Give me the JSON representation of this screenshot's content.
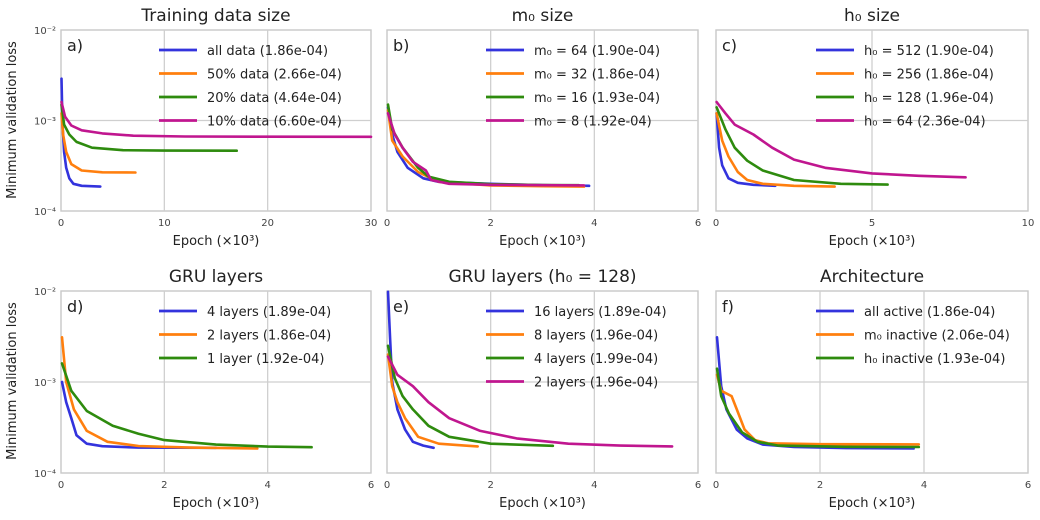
{
  "chart_data": [
    {
      "type": "line",
      "panel_label": "a)",
      "title": "Training data size",
      "xlabel": "Epoch (×10³)",
      "ylabel": "Minimum validation loss",
      "xlim": [
        0,
        30
      ],
      "xticks": [
        "0",
        "10",
        "20",
        "30"
      ],
      "ylim": [
        0.0001,
        0.01
      ],
      "yscale": "log",
      "yticks": [
        "10⁻⁴",
        "10⁻³",
        "10⁻²"
      ],
      "legend_position": "top-right",
      "series": [
        {
          "name": "all data (1.86e-04)",
          "color": "#3333dd",
          "points": [
            [
              0.05,
              0.0029
            ],
            [
              0.15,
              0.0009
            ],
            [
              0.3,
              0.00045
            ],
            [
              0.5,
              0.0003
            ],
            [
              0.8,
              0.00023
            ],
            [
              1.2,
              0.0002
            ],
            [
              2,
              0.00019
            ],
            [
              3.8,
              0.000186
            ]
          ]
        },
        {
          "name": "50% data (2.66e-04)",
          "color": "#ff7f0e",
          "points": [
            [
              0.05,
              0.0012
            ],
            [
              0.2,
              0.0007
            ],
            [
              0.5,
              0.00045
            ],
            [
              1,
              0.00033
            ],
            [
              2,
              0.00028
            ],
            [
              4,
              0.000268
            ],
            [
              7.2,
              0.000266
            ]
          ]
        },
        {
          "name": "20% data (4.64e-04)",
          "color": "#2e8b0e",
          "points": [
            [
              0.05,
              0.0015
            ],
            [
              0.3,
              0.0009
            ],
            [
              0.8,
              0.0007
            ],
            [
              1.5,
              0.00058
            ],
            [
              3,
              0.0005
            ],
            [
              6,
              0.00047
            ],
            [
              10,
              0.000465
            ],
            [
              17,
              0.000464
            ]
          ]
        },
        {
          "name": "10% data (6.60e-04)",
          "color": "#c0168f",
          "points": [
            [
              0.05,
              0.0016
            ],
            [
              0.4,
              0.0011
            ],
            [
              1,
              0.00088
            ],
            [
              2,
              0.00078
            ],
            [
              4,
              0.00072
            ],
            [
              7,
              0.00068
            ],
            [
              12,
              0.000665
            ],
            [
              20,
              0.000662
            ],
            [
              30,
              0.00066
            ]
          ]
        }
      ]
    },
    {
      "type": "line",
      "panel_label": "b)",
      "title": "m₀ size",
      "xlabel": "Epoch (×10³)",
      "xlim": [
        0,
        6
      ],
      "xticks": [
        "0",
        "2",
        "4",
        "6"
      ],
      "ylim": [
        0.0001,
        0.01
      ],
      "yscale": "log",
      "legend_position": "top-right",
      "series": [
        {
          "name": "m₀ = 64 (1.90e-04)",
          "color": "#3333dd",
          "points": [
            [
              0.02,
              0.0014
            ],
            [
              0.1,
              0.0007
            ],
            [
              0.2,
              0.00045
            ],
            [
              0.4,
              0.0003
            ],
            [
              0.7,
              0.00023
            ],
            [
              1,
              0.00021
            ],
            [
              2,
              0.0002
            ],
            [
              3,
              0.000193
            ],
            [
              3.9,
              0.00019
            ]
          ]
        },
        {
          "name": "m₀ = 32 (1.86e-04)",
          "color": "#ff7f0e",
          "points": [
            [
              0.02,
              0.0013
            ],
            [
              0.1,
              0.0006
            ],
            [
              0.3,
              0.0004
            ],
            [
              0.6,
              0.00027
            ],
            [
              1,
              0.00021
            ],
            [
              2,
              0.000192
            ],
            [
              3,
              0.000188
            ],
            [
              3.8,
              0.000186
            ]
          ]
        },
        {
          "name": "m₀ = 16 (1.93e-04)",
          "color": "#2e8b0e",
          "points": [
            [
              0.02,
              0.0015
            ],
            [
              0.1,
              0.0008
            ],
            [
              0.3,
              0.0005
            ],
            [
              0.6,
              0.0003
            ],
            [
              0.8,
              0.00024
            ],
            [
              1.2,
              0.00021
            ],
            [
              2,
              0.000198
            ],
            [
              3,
              0.000194
            ],
            [
              3.7,
              0.000193
            ]
          ]
        },
        {
          "name": "m₀ = 8 (1.92e-04)",
          "color": "#c0168f",
          "points": [
            [
              0.02,
              0.0012
            ],
            [
              0.15,
              0.0007
            ],
            [
              0.3,
              0.0005
            ],
            [
              0.5,
              0.00035
            ],
            [
              0.75,
              0.00028
            ],
            [
              0.85,
              0.00022
            ],
            [
              1.2,
              0.0002
            ],
            [
              2,
              0.000195
            ],
            [
              3,
              0.000193
            ],
            [
              3.8,
              0.000192
            ]
          ]
        }
      ]
    },
    {
      "type": "line",
      "panel_label": "c)",
      "title": "h₀ size",
      "xlabel": "Epoch (×10³)",
      "xlim": [
        0,
        10
      ],
      "xticks": [
        "0",
        "5",
        "10"
      ],
      "ylim": [
        0.0001,
        0.01
      ],
      "yscale": "log",
      "legend_position": "top-right",
      "series": [
        {
          "name": "h₀ = 512 (1.90e-04)",
          "color": "#3333dd",
          "points": [
            [
              0.02,
              0.0012
            ],
            [
              0.1,
              0.0005
            ],
            [
              0.2,
              0.00032
            ],
            [
              0.4,
              0.00023
            ],
            [
              0.7,
              0.000205
            ],
            [
              1.2,
              0.000195
            ],
            [
              1.9,
              0.00019
            ]
          ]
        },
        {
          "name": "h₀ = 256 (1.86e-04)",
          "color": "#ff7f0e",
          "points": [
            [
              0.02,
              0.0012
            ],
            [
              0.2,
              0.0006
            ],
            [
              0.4,
              0.0004
            ],
            [
              0.7,
              0.00027
            ],
            [
              1,
              0.00022
            ],
            [
              1.5,
              0.0002
            ],
            [
              2.5,
              0.00019
            ],
            [
              3.8,
              0.000186
            ]
          ]
        },
        {
          "name": "h₀ = 128 (1.96e-04)",
          "color": "#2e8b0e",
          "points": [
            [
              0.02,
              0.0014
            ],
            [
              0.3,
              0.0008
            ],
            [
              0.6,
              0.0005
            ],
            [
              1,
              0.00036
            ],
            [
              1.5,
              0.00028
            ],
            [
              2.5,
              0.00022
            ],
            [
              4,
              0.0002
            ],
            [
              5.5,
              0.000196
            ]
          ]
        },
        {
          "name": "h₀ = 64 (2.36e-04)",
          "color": "#c0168f",
          "points": [
            [
              0.02,
              0.0016
            ],
            [
              0.3,
              0.0012
            ],
            [
              0.6,
              0.0009
            ],
            [
              1.2,
              0.0007
            ],
            [
              1.8,
              0.0005
            ],
            [
              2.5,
              0.00037
            ],
            [
              3.5,
              0.0003
            ],
            [
              5,
              0.00026
            ],
            [
              6.5,
              0.000245
            ],
            [
              8,
              0.000236
            ]
          ]
        }
      ]
    },
    {
      "type": "line",
      "panel_label": "d)",
      "title": "GRU layers",
      "xlabel": "Epoch (×10³)",
      "ylabel": "Minimum validation loss",
      "xlim": [
        0,
        6
      ],
      "xticks": [
        "0",
        "2",
        "4",
        "6"
      ],
      "ylim": [
        0.0001,
        0.01
      ],
      "yscale": "log",
      "yticks": [
        "10⁻⁴",
        "10⁻³",
        "10⁻²"
      ],
      "legend_position": "top-right",
      "series": [
        {
          "name": "4 layers (1.89e-04)",
          "color": "#3333dd",
          "points": [
            [
              0.02,
              0.001
            ],
            [
              0.1,
              0.0006
            ],
            [
              0.2,
              0.0004
            ],
            [
              0.3,
              0.00026
            ],
            [
              0.5,
              0.00021
            ],
            [
              0.8,
              0.000197
            ],
            [
              1.5,
              0.00019
            ],
            [
              3,
              0.000189
            ]
          ]
        },
        {
          "name": "2 layers (1.86e-04)",
          "color": "#ff7f0e",
          "points": [
            [
              0.02,
              0.0031
            ],
            [
              0.1,
              0.001
            ],
            [
              0.25,
              0.0005
            ],
            [
              0.5,
              0.00029
            ],
            [
              0.9,
              0.00022
            ],
            [
              1.5,
              0.000198
            ],
            [
              2.5,
              0.00019
            ],
            [
              3.8,
              0.000186
            ]
          ]
        },
        {
          "name": "1 layer (1.92e-04)",
          "color": "#2e8b0e",
          "points": [
            [
              0.02,
              0.0016
            ],
            [
              0.2,
              0.0008
            ],
            [
              0.5,
              0.00048
            ],
            [
              1,
              0.00033
            ],
            [
              1.5,
              0.00027
            ],
            [
              2,
              0.00023
            ],
            [
              3,
              0.000205
            ],
            [
              4,
              0.000195
            ],
            [
              4.85,
              0.000192
            ]
          ]
        }
      ]
    },
    {
      "type": "line",
      "panel_label": "e)",
      "title": "GRU layers (h₀ = 128)",
      "xlabel": "Epoch (×10³)",
      "xlim": [
        0,
        6
      ],
      "xticks": [
        "0",
        "2",
        "4",
        "6"
      ],
      "ylim": [
        0.0001,
        0.01
      ],
      "yscale": "log",
      "legend_position": "top-right",
      "series": [
        {
          "name": "16 layers (1.89e-04)",
          "color": "#3333dd",
          "points": [
            [
              0.02,
              0.0098
            ],
            [
              0.06,
              0.003
            ],
            [
              0.1,
              0.001
            ],
            [
              0.2,
              0.0005
            ],
            [
              0.35,
              0.0003
            ],
            [
              0.5,
              0.00022
            ],
            [
              0.7,
              0.0002
            ],
            [
              0.9,
              0.000189
            ]
          ]
        },
        {
          "name": "8 layers (1.96e-04)",
          "color": "#ff7f0e",
          "points": [
            [
              0.02,
              0.002
            ],
            [
              0.1,
              0.0009
            ],
            [
              0.2,
              0.0006
            ],
            [
              0.35,
              0.0004
            ],
            [
              0.6,
              0.00025
            ],
            [
              1,
              0.00021
            ],
            [
              1.5,
              0.0002
            ],
            [
              1.75,
              0.000196
            ]
          ]
        },
        {
          "name": "4 layers (1.99e-04)",
          "color": "#2e8b0e",
          "points": [
            [
              0.02,
              0.0025
            ],
            [
              0.15,
              0.0011
            ],
            [
              0.3,
              0.0007
            ],
            [
              0.5,
              0.0005
            ],
            [
              0.8,
              0.00033
            ],
            [
              1.2,
              0.00025
            ],
            [
              2,
              0.00021
            ],
            [
              3.2,
              0.000199
            ]
          ]
        },
        {
          "name": "2 layers (1.96e-04)",
          "color": "#c0168f",
          "points": [
            [
              0.02,
              0.0019
            ],
            [
              0.2,
              0.0012
            ],
            [
              0.5,
              0.0009
            ],
            [
              0.8,
              0.0006
            ],
            [
              1.2,
              0.0004
            ],
            [
              1.8,
              0.00029
            ],
            [
              2.5,
              0.00024
            ],
            [
              3.5,
              0.00021
            ],
            [
              4.5,
              0.0002
            ],
            [
              5.5,
              0.000196
            ]
          ]
        }
      ]
    },
    {
      "type": "line",
      "panel_label": "f)",
      "title": "Architecture",
      "xlabel": "Epoch (×10³)",
      "xlim": [
        0,
        6
      ],
      "xticks": [
        "0",
        "2",
        "4",
        "6"
      ],
      "ylim": [
        0.0001,
        0.01
      ],
      "yscale": "log",
      "legend_position": "top-right",
      "series": [
        {
          "name": "all active (1.86e-04)",
          "color": "#3333dd",
          "points": [
            [
              0.02,
              0.0031
            ],
            [
              0.1,
              0.0009
            ],
            [
              0.2,
              0.0005
            ],
            [
              0.4,
              0.0003
            ],
            [
              0.6,
              0.00024
            ],
            [
              0.9,
              0.000205
            ],
            [
              1.5,
              0.000193
            ],
            [
              2.5,
              0.000188
            ],
            [
              3.8,
              0.000186
            ]
          ]
        },
        {
          "name": "m₀ inactive (2.06e-04)",
          "color": "#ff7f0e",
          "points": [
            [
              0.02,
              0.0012
            ],
            [
              0.1,
              0.0008
            ],
            [
              0.3,
              0.0007
            ],
            [
              0.4,
              0.0005
            ],
            [
              0.55,
              0.0003
            ],
            [
              0.75,
              0.00023
            ],
            [
              1,
              0.000212
            ],
            [
              2,
              0.000207
            ],
            [
              3.9,
              0.000206
            ]
          ]
        },
        {
          "name": "h₀ inactive (1.93e-04)",
          "color": "#2e8b0e",
          "points": [
            [
              0.02,
              0.0014
            ],
            [
              0.1,
              0.0007
            ],
            [
              0.25,
              0.00045
            ],
            [
              0.5,
              0.00028
            ],
            [
              0.8,
              0.00022
            ],
            [
              1.2,
              0.0002
            ],
            [
              2.5,
              0.000194
            ],
            [
              3.9,
              0.000193
            ]
          ]
        }
      ]
    }
  ]
}
